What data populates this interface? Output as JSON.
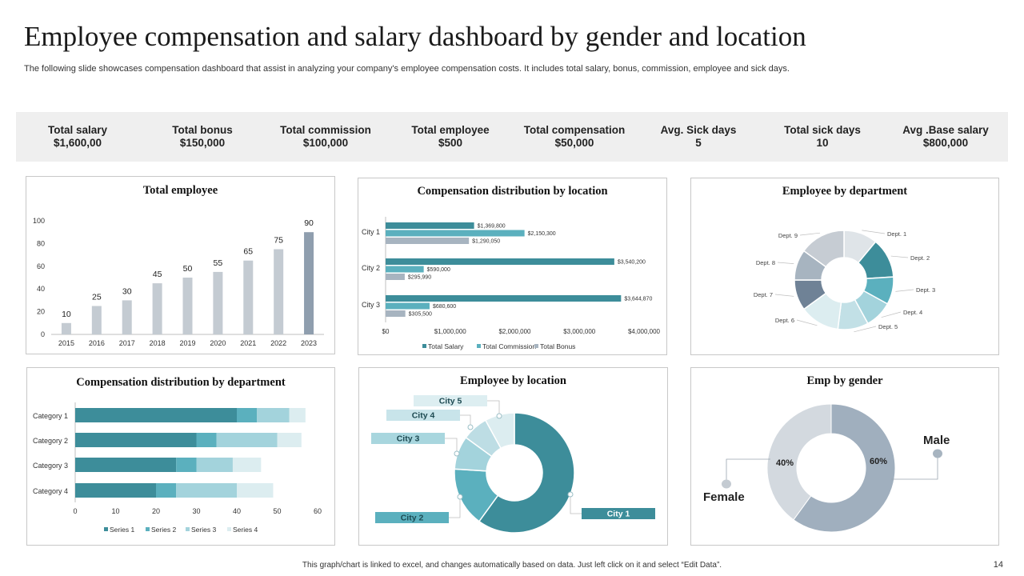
{
  "page": {
    "title": "Employee compensation and salary dashboard by gender and location",
    "subtitle": "The following slide showcases compensation dashboard that assist in analyzing your company's employee compensation costs. It includes total salary, bonus, commission, employee and sick days.",
    "footer": "This graph/chart is linked to excel, and changes automatically based on data. Just left click on it and select “Edit Data”.",
    "page_number": "14"
  },
  "colors": {
    "teal_dark": "#3d8d9a",
    "teal": "#5bb0be",
    "teal_light": "#a3d3dc",
    "teal_pale": "#dcedf0",
    "gray": "#a7b4c0",
    "gray_light": "#d3d9df",
    "gray_bar": "#c4cbd2",
    "gray_dark": "#8f9eae",
    "kpi_bg": "#efefef"
  },
  "kpis": [
    {
      "label": "Total salary",
      "value": "$1,600,00"
    },
    {
      "label": "Total bonus",
      "value": "$150,000"
    },
    {
      "label": "Total commission",
      "value": "$100,000"
    },
    {
      "label": "Total employee",
      "value": "$500"
    },
    {
      "label": "Total compensation",
      "value": "$50,000"
    },
    {
      "label": "Avg. Sick days",
      "value": "5"
    },
    {
      "label": "Total sick  days",
      "value": "10"
    },
    {
      "label": "Avg .Base salary",
      "value": "$800,000"
    }
  ],
  "panels": {
    "total_employee": "Total employee",
    "comp_location": "Compensation distribution by location",
    "emp_department": "Employee by department",
    "comp_department": "Compensation distribution by department",
    "emp_location": "Employee by location",
    "emp_gender": "Emp by gender"
  },
  "chart_data": [
    {
      "id": "total_employee",
      "type": "bar",
      "categories": [
        "2015",
        "2016",
        "2017",
        "2018",
        "2019",
        "2020",
        "2021",
        "2022",
        "2023"
      ],
      "values": [
        10,
        25,
        30,
        45,
        50,
        55,
        65,
        75,
        90
      ],
      "value_labels": [
        "10",
        "25",
        "30",
        "45",
        "50",
        "55",
        "65",
        "75",
        "90"
      ],
      "y_ticks": [
        "0",
        "20",
        "40",
        "60",
        "80",
        "100"
      ],
      "ylim": [
        0,
        100
      ],
      "highlight_index": 8
    },
    {
      "id": "comp_location",
      "type": "bar",
      "orientation": "horizontal",
      "categories": [
        "City 1",
        "City 2",
        "City 3"
      ],
      "series": [
        {
          "name": "Total Salary",
          "values": [
            1369800,
            3540200,
            3644870
          ],
          "labels": [
            "$1,369,800",
            "$3,540,200",
            "$3,644,870"
          ]
        },
        {
          "name": "Total Commission",
          "values": [
            2150300,
            590000,
            680600
          ],
          "labels": [
            "$2,150,300",
            "$590,000",
            "$680,600"
          ]
        },
        {
          "name": "Total Bonus",
          "values": [
            1290050,
            295990,
            305500
          ],
          "labels": [
            "$1,290,050",
            "$295,990",
            "$305,500"
          ]
        }
      ],
      "x_ticks": [
        "$0",
        "$1,000,000",
        "$2,000,000",
        "$3,000,000",
        "$4,000,000"
      ],
      "xlim": [
        0,
        4000000
      ],
      "legend": "bottom"
    },
    {
      "id": "emp_department",
      "type": "pie",
      "donut": true,
      "labels": [
        "Dept. 1",
        "Dept. 2",
        "Dept. 3",
        "Dept. 4",
        "Dept. 5",
        "Dept. 6",
        "Dept. 7",
        "Dept. 8",
        "Dept. 9"
      ],
      "values": [
        11,
        13,
        9,
        9,
        10,
        13,
        10,
        10,
        15
      ]
    },
    {
      "id": "comp_department",
      "type": "bar",
      "orientation": "horizontal",
      "stacked": true,
      "categories": [
        "Category 1",
        "Category 2",
        "Category 3",
        "Category 4"
      ],
      "series": [
        {
          "name": "Series 1",
          "values": [
            40,
            30,
            25,
            20
          ]
        },
        {
          "name": "Series 2",
          "values": [
            5,
            5,
            5,
            5
          ]
        },
        {
          "name": "Series 3",
          "values": [
            8,
            15,
            9,
            15
          ]
        },
        {
          "name": "Series 4",
          "values": [
            4,
            6,
            7,
            9
          ]
        }
      ],
      "x_ticks": [
        "0",
        "10",
        "20",
        "30",
        "40",
        "50",
        "60"
      ],
      "xlim": [
        0,
        60
      ],
      "legend": "bottom"
    },
    {
      "id": "emp_location",
      "type": "pie",
      "donut": true,
      "labels": [
        "City 1",
        "City 2",
        "City 3",
        "City 4",
        "City 5"
      ],
      "values": [
        60,
        16,
        9,
        7,
        8
      ]
    },
    {
      "id": "emp_gender",
      "type": "pie",
      "donut": true,
      "labels": [
        "Male",
        "Female"
      ],
      "values": [
        60,
        40
      ],
      "value_labels": [
        "60%",
        "40%"
      ]
    }
  ]
}
